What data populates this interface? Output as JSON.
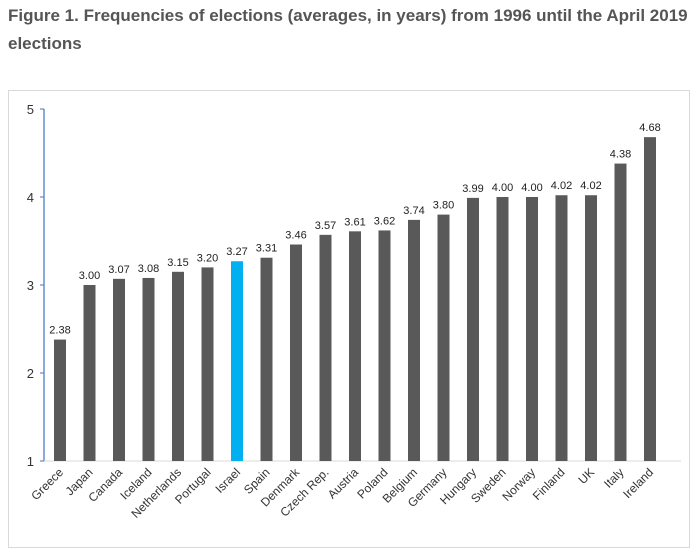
{
  "title": "Figure 1. Frequencies of elections (averages, in years) from 1996 until the April 2019 elections",
  "colors": {
    "bar": "#595959",
    "highlight": "#00b0f0",
    "axis": "#4472c4"
  },
  "chart_data": {
    "type": "bar",
    "categories": [
      "Greece",
      "Japan",
      "Canada",
      "Iceland",
      "Netherlands",
      "Portugal",
      "Israel",
      "Spain",
      "Denmark",
      "Czech Rep.",
      "Austria",
      "Poland",
      "Belgium",
      "Germany",
      "Hungary",
      "Sweden",
      "Norway",
      "Finland",
      "UK",
      "Italy",
      "Ireland"
    ],
    "values": [
      2.38,
      3.0,
      3.07,
      3.08,
      3.15,
      3.2,
      3.27,
      3.31,
      3.46,
      3.57,
      3.61,
      3.62,
      3.74,
      3.8,
      3.99,
      4.0,
      4.0,
      4.02,
      4.02,
      4.38,
      4.68
    ],
    "value_labels": [
      "2.38",
      "3.00",
      "3.07",
      "3.08",
      "3.15",
      "3.20",
      "3.27",
      "3.31",
      "3.46",
      "3.57",
      "3.61",
      "3.62",
      "3.74",
      "3.80",
      "3.99",
      "4.00",
      "4.00",
      "4.02",
      "4.02",
      "4.38",
      "4.68"
    ],
    "highlight": "Israel",
    "ylim": [
      1,
      5
    ],
    "yticks": [
      1,
      2,
      3,
      4,
      5
    ],
    "grid": false,
    "legend": "none"
  }
}
